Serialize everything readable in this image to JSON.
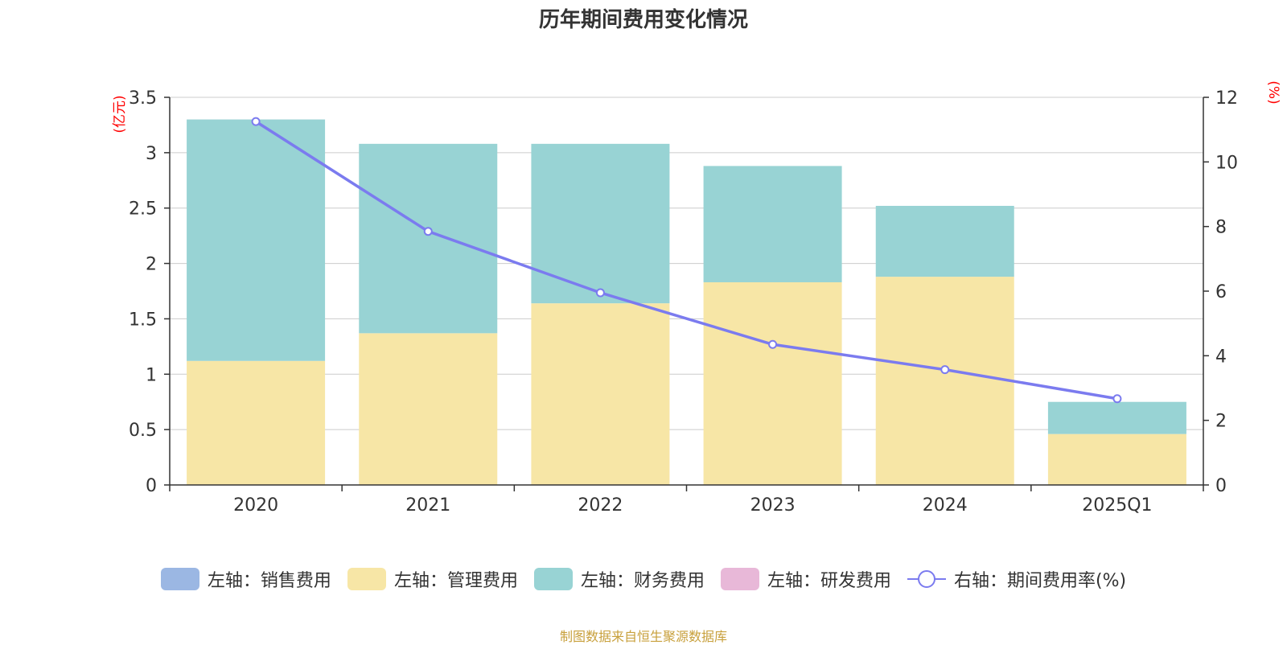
{
  "chart_data": {
    "type": "bar",
    "title": "历年期间费用变化情况",
    "categories": [
      "2020",
      "2021",
      "2022",
      "2023",
      "2024",
      "2025Q1"
    ],
    "stacked": true,
    "series": [
      {
        "name": "左轴：销售费用",
        "axis": "left",
        "color": "#9bb7e3",
        "values": [
          0,
          0,
          0,
          0,
          0,
          0
        ]
      },
      {
        "name": "左轴：管理费用",
        "axis": "left",
        "color": "#f7e6a6",
        "values": [
          1.12,
          1.37,
          1.64,
          1.83,
          1.88,
          0.46
        ]
      },
      {
        "name": "左轴：财务费用",
        "axis": "left",
        "color": "#98d3d4",
        "values": [
          2.18,
          1.71,
          1.44,
          1.05,
          0.64,
          0.29
        ]
      },
      {
        "name": "左轴：研发费用",
        "axis": "left",
        "color": "#e8b8d8",
        "values": [
          0,
          0,
          0,
          0,
          0,
          0
        ]
      }
    ],
    "line_series": {
      "name": "右轴：期间费用率(%)",
      "axis": "right",
      "color": "#7b7bef",
      "values": [
        11.25,
        7.85,
        5.95,
        4.35,
        3.57,
        2.67
      ]
    },
    "left_axis": {
      "unit": "(亿元)",
      "ylim": [
        0,
        3.5
      ],
      "ticks": [
        "0",
        "0.5",
        "1",
        "1.5",
        "2",
        "2.5",
        "3",
        "3.5"
      ]
    },
    "right_axis": {
      "unit": "(%)",
      "ylim": [
        0,
        12
      ],
      "ticks": [
        "0",
        "2",
        "4",
        "6",
        "8",
        "10",
        "12"
      ]
    },
    "legend_position": "bottom",
    "grid": true
  },
  "source": "制图数据来自恒生聚源数据库"
}
